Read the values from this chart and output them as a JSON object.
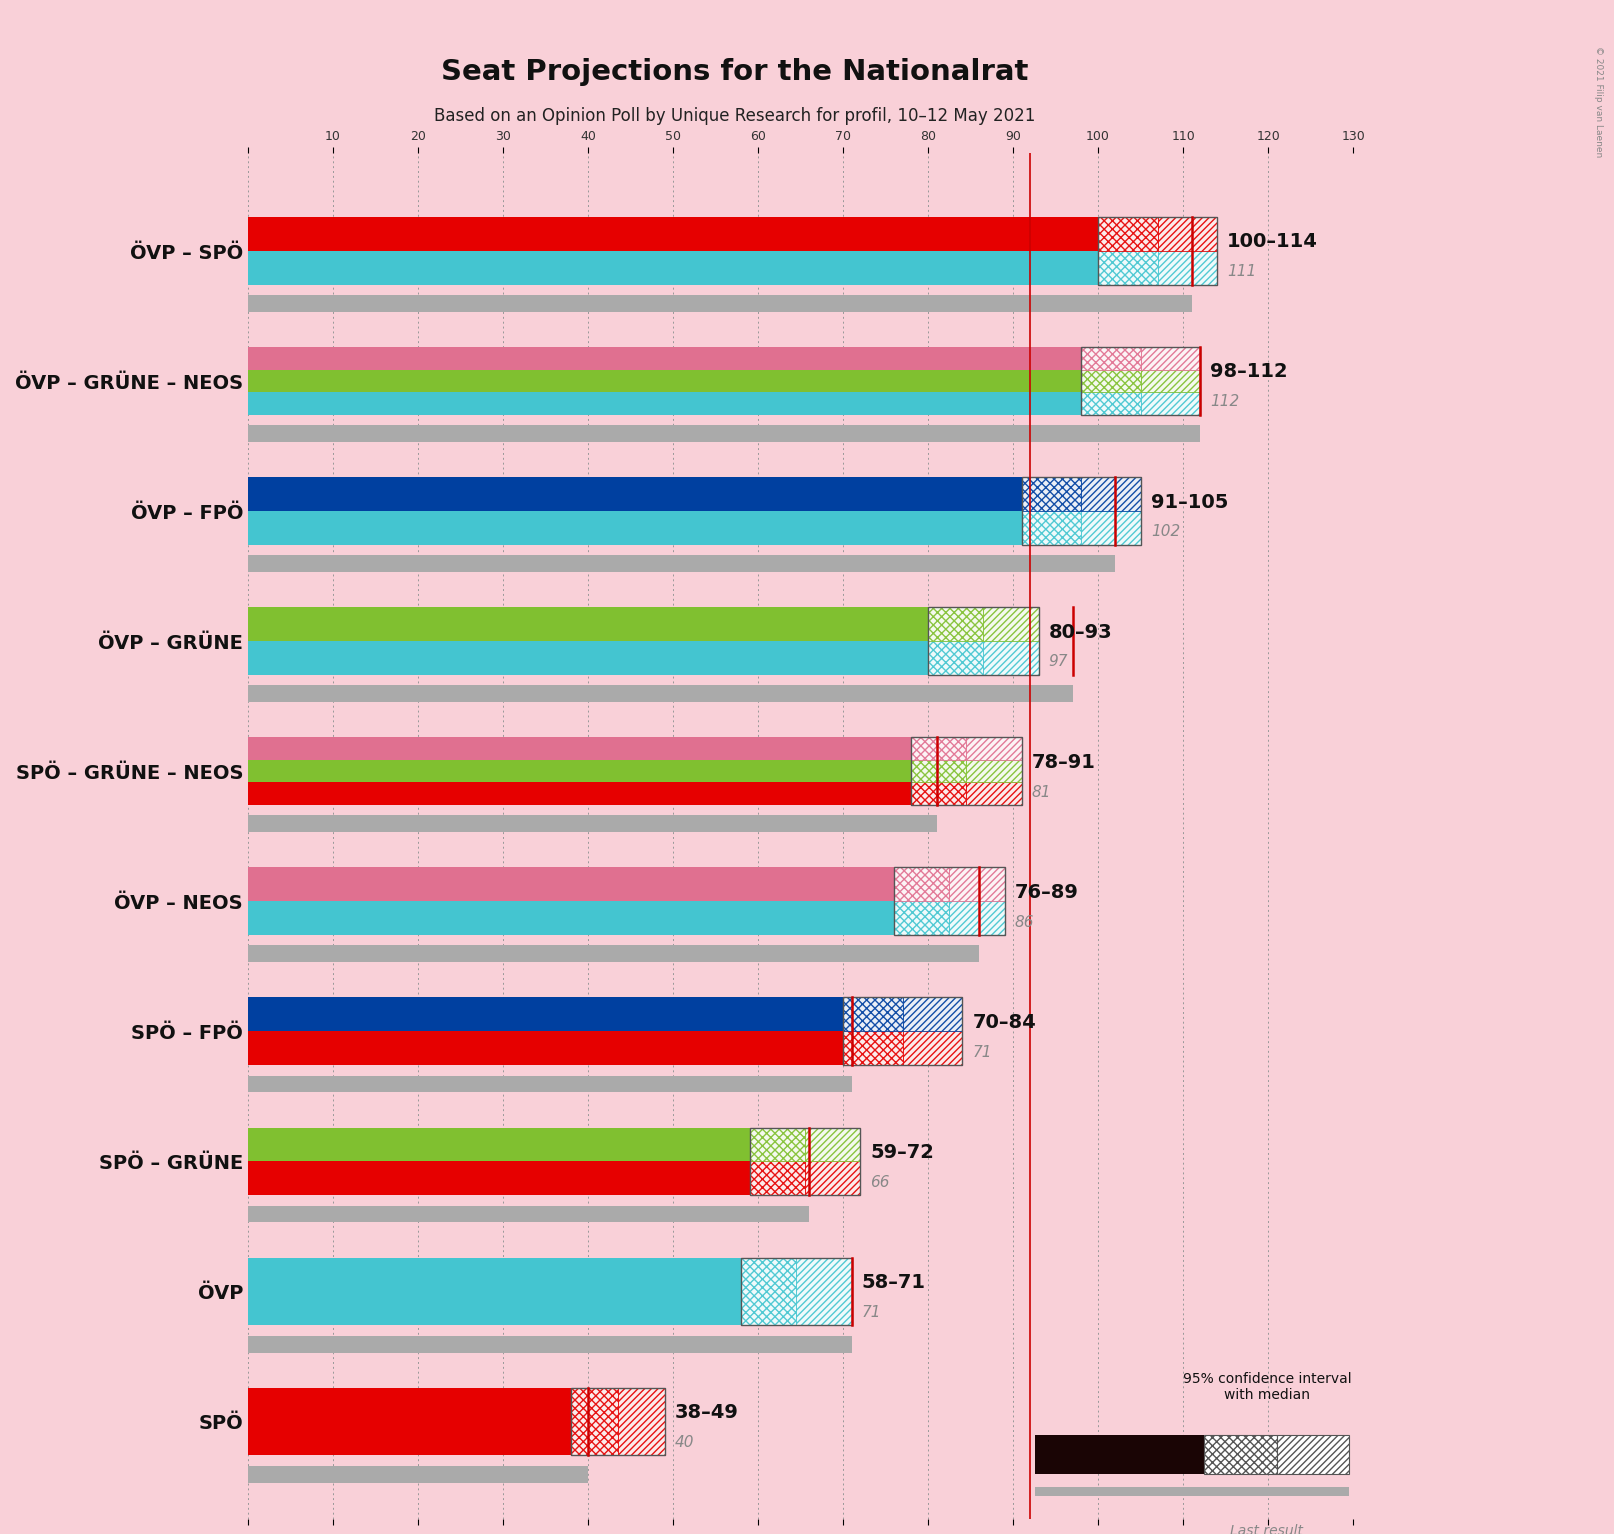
{
  "title": "Seat Projections for the Nationalrat",
  "subtitle": "Based on an Opinion Poll by Unique Research for profil, 10–12 May 2021",
  "copyright": "© 2021 Filip van Laenen",
  "background_color": "#F9D0D8",
  "coalitions": [
    {
      "name": "ÖVP – SPÖ",
      "parties": [
        "ÖVP",
        "SPÖ"
      ],
      "colors": [
        "#44C5D0",
        "#E60000"
      ],
      "ci_low": 100,
      "ci_high": 114,
      "median": 111,
      "last_result": 111,
      "label": "100–114",
      "label_median": "111",
      "underline": false
    },
    {
      "name": "ÖVP – GRÜNE – NEOS",
      "parties": [
        "ÖVP",
        "GRÜNE",
        "NEOS"
      ],
      "colors": [
        "#44C5D0",
        "#80C030",
        "#E07090"
      ],
      "ci_low": 98,
      "ci_high": 112,
      "median": 112,
      "last_result": 112,
      "label": "98–112",
      "label_median": "112",
      "underline": false
    },
    {
      "name": "ÖVP – FPÖ",
      "parties": [
        "ÖVP",
        "FPÖ"
      ],
      "colors": [
        "#44C5D0",
        "#0040A0"
      ],
      "ci_low": 91,
      "ci_high": 105,
      "median": 102,
      "last_result": 102,
      "label": "91–105",
      "label_median": "102",
      "underline": false
    },
    {
      "name": "ÖVP – GRÜNE",
      "parties": [
        "ÖVP",
        "GRÜNE"
      ],
      "colors": [
        "#44C5D0",
        "#80C030"
      ],
      "ci_low": 80,
      "ci_high": 93,
      "median": 97,
      "last_result": 97,
      "label": "80–93",
      "label_median": "97",
      "underline": true
    },
    {
      "name": "SPÖ – GRÜNE – NEOS",
      "parties": [
        "SPÖ",
        "GRÜNE",
        "NEOS"
      ],
      "colors": [
        "#E60000",
        "#80C030",
        "#E07090"
      ],
      "ci_low": 78,
      "ci_high": 91,
      "median": 81,
      "last_result": 81,
      "label": "78–91",
      "label_median": "81",
      "underline": false
    },
    {
      "name": "ÖVP – NEOS",
      "parties": [
        "ÖVP",
        "NEOS"
      ],
      "colors": [
        "#44C5D0",
        "#E07090"
      ],
      "ci_low": 76,
      "ci_high": 89,
      "median": 86,
      "last_result": 86,
      "label": "76–89",
      "label_median": "86",
      "underline": false
    },
    {
      "name": "SPÖ – FPÖ",
      "parties": [
        "SPÖ",
        "FPÖ"
      ],
      "colors": [
        "#E60000",
        "#0040A0"
      ],
      "ci_low": 70,
      "ci_high": 84,
      "median": 71,
      "last_result": 71,
      "label": "70–84",
      "label_median": "71",
      "underline": false
    },
    {
      "name": "SPÖ – GRÜNE",
      "parties": [
        "SPÖ",
        "GRÜNE"
      ],
      "colors": [
        "#E60000",
        "#80C030"
      ],
      "ci_low": 59,
      "ci_high": 72,
      "median": 66,
      "last_result": 66,
      "label": "59–72",
      "label_median": "66",
      "underline": false
    },
    {
      "name": "ÖVP",
      "parties": [
        "ÖVP"
      ],
      "colors": [
        "#44C5D0"
      ],
      "ci_low": 58,
      "ci_high": 71,
      "median": 71,
      "last_result": 71,
      "label": "58–71",
      "label_median": "71",
      "underline": false
    },
    {
      "name": "SPÖ",
      "parties": [
        "SPÖ"
      ],
      "colors": [
        "#E60000"
      ],
      "ci_low": 38,
      "ci_high": 49,
      "median": 40,
      "last_result": 40,
      "label": "38–49",
      "label_median": "40",
      "underline": false
    }
  ],
  "x_min": 0,
  "x_max": 130,
  "x_ticks": [
    0,
    10,
    20,
    30,
    40,
    50,
    60,
    70,
    80,
    90,
    100,
    110,
    120,
    130
  ],
  "majority_line": 92,
  "party_colors": {
    "ÖVP": "#44C5D0",
    "SPÖ": "#E60000",
    "GRÜNE": "#80C030",
    "FPÖ": "#0040A0",
    "NEOS": "#E07090"
  }
}
